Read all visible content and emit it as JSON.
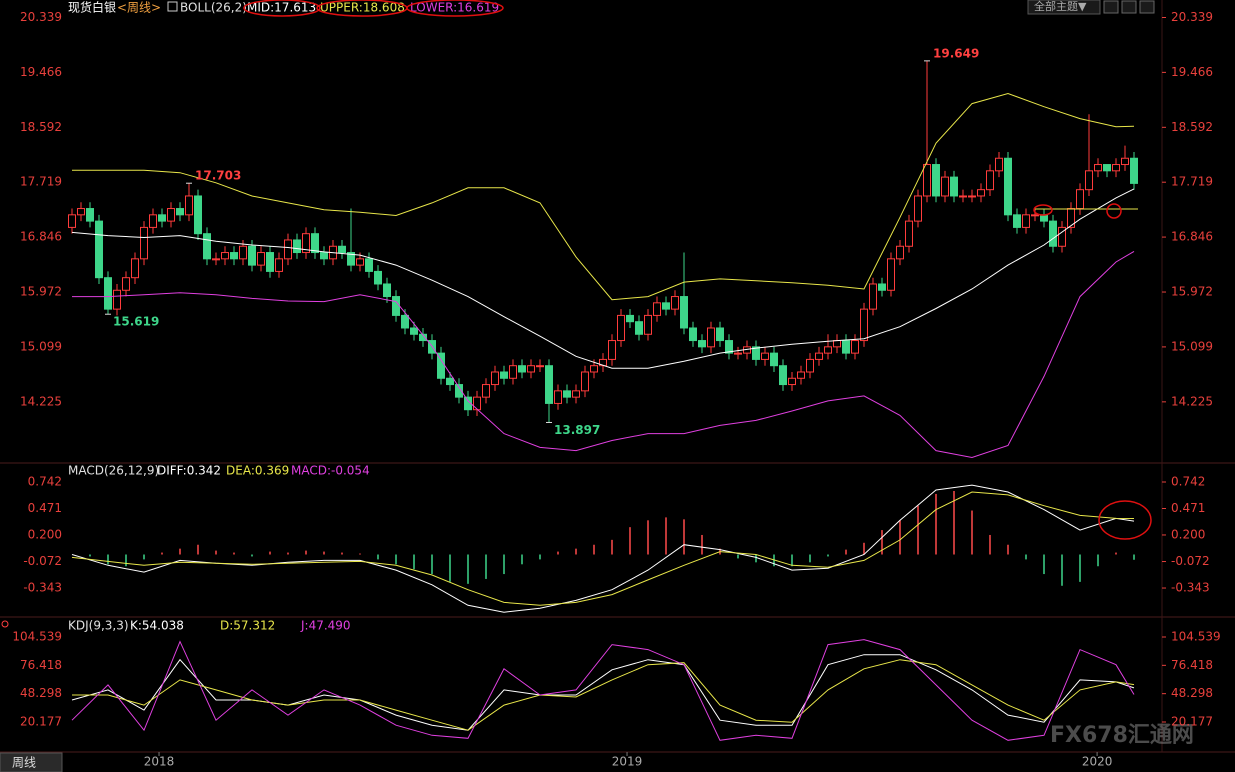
{
  "toolbar": {
    "theme_button": "全部主题▼",
    "period_tab": "周线",
    "watermark": "FX678汇通网"
  },
  "chart_data": [
    {
      "type": "candlestick",
      "title": "现货白银",
      "period": "<周线>",
      "indicator": "BOLL(26,2)",
      "up_color": "#ff3c3c",
      "down_color": "#3ed68a",
      "tick_color": "#e8403c",
      "xlim": [
        -1,
        121
      ],
      "ylim": [
        13.3,
        20.49
      ],
      "yticks": [
        20.339,
        19.466,
        18.592,
        17.719,
        16.846,
        15.972,
        15.099,
        14.225
      ],
      "open": [
        17.0,
        17.2,
        17.3,
        17.1,
        16.2,
        15.7,
        16.0,
        16.2,
        16.5,
        17.0,
        17.2,
        17.1,
        17.3,
        17.2,
        17.5,
        16.9,
        16.5,
        16.5,
        16.6,
        16.5,
        16.7,
        16.4,
        16.6,
        16.3,
        16.5,
        16.8,
        16.6,
        16.9,
        16.6,
        16.5,
        16.7,
        16.6,
        16.4,
        16.5,
        16.3,
        16.1,
        15.9,
        15.6,
        15.4,
        15.3,
        15.2,
        15.0,
        14.6,
        14.5,
        14.3,
        14.1,
        14.3,
        14.5,
        14.7,
        14.6,
        14.8,
        14.7,
        14.8,
        14.8,
        14.2,
        14.4,
        14.3,
        14.4,
        14.7,
        14.8,
        14.9,
        15.2,
        15.6,
        15.5,
        15.3,
        15.6,
        15.8,
        15.7,
        15.9,
        15.4,
        15.2,
        15.1,
        15.4,
        15.2,
        15.0,
        15.0,
        15.1,
        14.9,
        15.0,
        14.8,
        14.5,
        14.6,
        14.7,
        14.9,
        15.0,
        15.1,
        15.2,
        15.0,
        15.2,
        15.7,
        16.1,
        16.0,
        16.5,
        16.7,
        17.1,
        17.5,
        18.0,
        17.5,
        17.8,
        17.5,
        17.5,
        17.5,
        17.6,
        17.9,
        18.1,
        17.2,
        17.0,
        17.2,
        17.2,
        17.1,
        16.7,
        17.0,
        17.3,
        17.6,
        17.9,
        18.0,
        17.9,
        18.0,
        18.1
      ],
      "high": [
        17.3,
        17.4,
        17.4,
        17.2,
        16.3,
        16.1,
        16.3,
        16.6,
        17.1,
        17.3,
        17.3,
        17.4,
        17.4,
        17.703,
        17.6,
        17.0,
        16.6,
        16.7,
        16.7,
        16.8,
        16.8,
        16.7,
        16.7,
        16.6,
        16.9,
        16.9,
        17.0,
        17.0,
        16.7,
        16.8,
        16.8,
        17.3,
        16.6,
        16.6,
        16.4,
        16.2,
        16.0,
        15.7,
        15.5,
        15.4,
        15.3,
        15.1,
        14.7,
        14.6,
        14.4,
        14.4,
        14.6,
        14.8,
        14.8,
        14.9,
        14.9,
        14.9,
        14.9,
        14.9,
        14.5,
        14.5,
        14.5,
        14.8,
        14.9,
        15.0,
        15.3,
        15.7,
        15.7,
        15.6,
        15.7,
        15.9,
        15.9,
        16.0,
        16.6,
        15.5,
        15.3,
        15.5,
        15.5,
        15.3,
        15.1,
        15.2,
        15.2,
        15.1,
        15.1,
        14.9,
        14.7,
        14.8,
        15.0,
        15.1,
        15.3,
        15.3,
        15.3,
        15.3,
        15.8,
        16.2,
        16.2,
        16.6,
        16.8,
        17.2,
        17.6,
        19.649,
        18.1,
        17.9,
        17.9,
        17.6,
        17.6,
        17.7,
        18.0,
        18.2,
        18.2,
        17.3,
        17.3,
        17.3,
        17.3,
        17.2,
        17.1,
        17.4,
        17.7,
        18.8,
        18.1,
        18.0,
        18.1,
        18.3,
        18.2
      ],
      "low": [
        16.9,
        17.1,
        17.0,
        16.1,
        15.619,
        15.6,
        15.9,
        16.1,
        16.4,
        16.9,
        17.0,
        17.0,
        17.1,
        17.1,
        16.8,
        16.4,
        16.4,
        16.4,
        16.4,
        16.4,
        16.3,
        16.3,
        16.2,
        16.2,
        16.4,
        16.5,
        16.5,
        16.5,
        16.4,
        16.4,
        16.5,
        16.3,
        16.3,
        16.2,
        16.0,
        15.8,
        15.5,
        15.3,
        15.2,
        15.1,
        14.9,
        14.5,
        14.4,
        14.2,
        14.0,
        14.0,
        14.2,
        14.4,
        14.5,
        14.5,
        14.6,
        14.6,
        14.7,
        13.897,
        14.1,
        14.2,
        14.2,
        14.3,
        14.6,
        14.7,
        14.8,
        15.1,
        15.4,
        15.2,
        15.2,
        15.5,
        15.6,
        15.6,
        15.3,
        15.1,
        15.0,
        15.0,
        15.1,
        14.9,
        14.9,
        14.9,
        14.8,
        14.8,
        14.7,
        14.4,
        14.4,
        14.5,
        14.6,
        14.8,
        14.9,
        15.0,
        14.9,
        14.9,
        15.1,
        15.6,
        15.9,
        15.9,
        16.4,
        16.6,
        17.0,
        17.4,
        17.4,
        17.4,
        17.4,
        17.4,
        17.4,
        17.4,
        17.5,
        17.8,
        17.1,
        16.9,
        16.9,
        17.1,
        17.0,
        16.6,
        16.6,
        16.9,
        17.2,
        17.5,
        17.8,
        17.8,
        17.8,
        17.9,
        17.6
      ],
      "close": [
        17.2,
        17.3,
        17.1,
        16.2,
        15.7,
        16.0,
        16.2,
        16.5,
        17.0,
        17.2,
        17.1,
        17.3,
        17.2,
        17.5,
        16.9,
        16.5,
        16.5,
        16.6,
        16.5,
        16.7,
        16.4,
        16.6,
        16.3,
        16.5,
        16.8,
        16.6,
        16.9,
        16.6,
        16.5,
        16.7,
        16.6,
        16.4,
        16.5,
        16.3,
        16.1,
        15.9,
        15.6,
        15.4,
        15.3,
        15.2,
        15.0,
        14.6,
        14.5,
        14.3,
        14.1,
        14.3,
        14.5,
        14.7,
        14.6,
        14.8,
        14.7,
        14.8,
        14.8,
        14.2,
        14.4,
        14.3,
        14.4,
        14.7,
        14.8,
        14.9,
        15.2,
        15.6,
        15.5,
        15.3,
        15.6,
        15.8,
        15.7,
        15.9,
        15.4,
        15.2,
        15.1,
        15.4,
        15.2,
        15.0,
        15.0,
        15.1,
        14.9,
        15.0,
        14.8,
        14.5,
        14.6,
        14.7,
        14.9,
        15.0,
        15.1,
        15.2,
        15.0,
        15.2,
        15.7,
        16.1,
        16.0,
        16.5,
        16.7,
        17.1,
        17.5,
        18.0,
        17.5,
        17.8,
        17.5,
        17.5,
        17.5,
        17.6,
        17.9,
        18.1,
        17.2,
        17.0,
        17.2,
        17.2,
        17.1,
        16.7,
        17.0,
        17.3,
        17.6,
        17.9,
        18.0,
        17.9,
        18.0,
        18.1,
        17.7
      ],
      "extreme_labels": [
        {
          "series": "high",
          "index": 95,
          "color": "#ff4040"
        },
        {
          "series": "high",
          "index": 13,
          "color": "#ff4040"
        },
        {
          "series": "low",
          "index": 4,
          "color": "#3ed68a"
        },
        {
          "series": "low",
          "index": 53,
          "color": "#3ed68a"
        }
      ],
      "line_x": [
        0,
        4,
        8,
        12,
        16,
        20,
        24,
        28,
        32,
        36,
        40,
        44,
        48,
        52,
        56,
        60,
        64,
        68,
        72,
        76,
        80,
        84,
        88,
        92,
        96,
        100,
        104,
        108,
        112,
        116,
        118
      ],
      "series": [
        {
          "name": "MID:17.613",
          "color": "#ffffff",
          "values": [
            16.92,
            16.87,
            16.84,
            16.87,
            16.78,
            16.72,
            16.68,
            16.61,
            16.56,
            16.4,
            16.16,
            15.9,
            15.58,
            15.27,
            14.95,
            14.76,
            14.76,
            14.87,
            15.0,
            15.08,
            15.14,
            15.19,
            15.23,
            15.42,
            15.71,
            16.02,
            16.4,
            16.72,
            17.13,
            17.47,
            17.613
          ]
        },
        {
          "name": "UPPER:18.608",
          "color": "#e8e64a",
          "values": [
            17.91,
            17.91,
            17.91,
            17.87,
            17.71,
            17.5,
            17.39,
            17.28,
            17.24,
            17.19,
            17.39,
            17.63,
            17.63,
            17.39,
            16.53,
            15.85,
            15.9,
            16.13,
            16.18,
            16.15,
            16.12,
            16.08,
            16.02,
            17.16,
            18.34,
            18.97,
            19.13,
            18.92,
            18.73,
            18.6,
            18.608
          ]
        },
        {
          "name": "LOWER:16.619",
          "color": "#e040e0",
          "values": [
            15.9,
            15.9,
            15.93,
            15.96,
            15.93,
            15.87,
            15.83,
            15.82,
            15.93,
            15.82,
            15.11,
            14.24,
            13.72,
            13.5,
            13.45,
            13.61,
            13.72,
            13.72,
            13.85,
            13.93,
            14.08,
            14.24,
            14.32,
            14.01,
            13.45,
            13.34,
            13.53,
            14.63,
            15.9,
            16.45,
            16.619
          ]
        }
      ]
    },
    {
      "type": "macd",
      "indicator": "MACD(26,12,9)",
      "up_color": "#ff4a4a",
      "down_color": "#3ed68a",
      "tick_color": "#e8403c",
      "xlim": [
        -1,
        121
      ],
      "ylim": [
        -0.619,
        0.916
      ],
      "yticks": [
        0.742,
        0.471,
        {
          "value": 0.2,
          "label": "0.200"
        },
        -0.072,
        -0.343
      ],
      "line_x": [
        0,
        4,
        8,
        12,
        16,
        20,
        24,
        28,
        32,
        36,
        40,
        44,
        48,
        52,
        56,
        60,
        64,
        68,
        72,
        76,
        80,
        84,
        88,
        92,
        96,
        100,
        104,
        108,
        112,
        116,
        118
      ],
      "bar_x": [
        0,
        2,
        4,
        6,
        8,
        10,
        12,
        14,
        16,
        18,
        20,
        22,
        24,
        26,
        28,
        30,
        32,
        34,
        36,
        38,
        40,
        42,
        44,
        46,
        48,
        50,
        52,
        54,
        56,
        58,
        60,
        62,
        64,
        66,
        68,
        70,
        72,
        74,
        76,
        78,
        80,
        82,
        84,
        86,
        88,
        90,
        92,
        94,
        96,
        98,
        100,
        102,
        104,
        106,
        108,
        110,
        112,
        114,
        116,
        118
      ],
      "series": [
        {
          "name": "DIFF:0.342",
          "color": "#ffffff",
          "values": [
            0.0,
            -0.11,
            -0.18,
            -0.06,
            -0.09,
            -0.11,
            -0.08,
            -0.06,
            -0.06,
            -0.16,
            -0.31,
            -0.52,
            -0.59,
            -0.55,
            -0.47,
            -0.36,
            -0.16,
            0.1,
            0.05,
            -0.03,
            -0.16,
            -0.14,
            0.0,
            0.35,
            0.66,
            0.71,
            0.64,
            0.46,
            0.25,
            0.37,
            0.342
          ]
        },
        {
          "name": "DEA:0.369",
          "color": "#e8e64a",
          "values": [
            -0.03,
            -0.07,
            -0.11,
            -0.08,
            -0.09,
            -0.1,
            -0.09,
            -0.08,
            -0.07,
            -0.11,
            -0.21,
            -0.36,
            -0.49,
            -0.52,
            -0.49,
            -0.41,
            -0.26,
            -0.11,
            0.03,
            0.0,
            -0.11,
            -0.13,
            -0.06,
            0.15,
            0.46,
            0.64,
            0.61,
            0.5,
            0.4,
            0.37,
            0.369
          ]
        },
        {
          "name": "MACD:-0.054",
          "color": "#e040e0",
          "style": "bar",
          "values": [
            0.0,
            -0.02,
            -0.1,
            -0.12,
            -0.05,
            0.02,
            0.06,
            0.1,
            0.04,
            0.02,
            -0.02,
            0.03,
            0.02,
            0.04,
            0.03,
            0.02,
            0.01,
            -0.05,
            -0.1,
            -0.15,
            -0.2,
            -0.28,
            -0.3,
            -0.25,
            -0.2,
            -0.1,
            -0.05,
            0.03,
            0.06,
            0.1,
            0.15,
            0.28,
            0.35,
            0.38,
            0.36,
            0.2,
            0.06,
            -0.04,
            -0.08,
            -0.12,
            -0.12,
            -0.08,
            -0.02,
            0.05,
            0.12,
            0.25,
            0.35,
            0.5,
            0.62,
            0.65,
            0.45,
            0.2,
            0.1,
            -0.05,
            -0.2,
            -0.32,
            -0.28,
            -0.12,
            0.02,
            -0.054
          ]
        }
      ]
    },
    {
      "type": "line",
      "indicator": "KDJ(9,3,3)",
      "tick_color": "#e8403c",
      "xlim": [
        -1,
        121
      ],
      "ylim": [
        -7.6,
        121.4
      ],
      "yticks": [
        104.539,
        76.418,
        48.298,
        20.177
      ],
      "xticks": [
        {
          "value": 9.67,
          "label": "2018"
        },
        {
          "value": 61.67,
          "label": "2019"
        },
        {
          "value": 113.9,
          "label": "2020"
        }
      ],
      "line_x": [
        0,
        4,
        8,
        12,
        16,
        20,
        24,
        28,
        32,
        36,
        40,
        44,
        48,
        52,
        56,
        60,
        64,
        68,
        72,
        76,
        80,
        84,
        88,
        92,
        96,
        100,
        104,
        108,
        112,
        116,
        118
      ],
      "series": [
        {
          "name": "K:54.038",
          "color": "#ffffff",
          "values": [
            42,
            52,
            32,
            82,
            42,
            42,
            37,
            47,
            42,
            27,
            17,
            12,
            52,
            47,
            47,
            72,
            82,
            77,
            22,
            17,
            17,
            77,
            87,
            87,
            72,
            52,
            27,
            20,
            62,
            60,
            54.038
          ]
        },
        {
          "name": "D:57.312",
          "color": "#e8e64a",
          "values": [
            47,
            47,
            37,
            62,
            52,
            42,
            37,
            42,
            42,
            32,
            22,
            12,
            37,
            47,
            45,
            62,
            77,
            79,
            37,
            22,
            20,
            52,
            73,
            82,
            77,
            57,
            37,
            22,
            52,
            60,
            57.312
          ]
        },
        {
          "name": "J:47.490",
          "color": "#e040e0",
          "values": [
            22,
            57,
            12,
            100,
            22,
            52,
            27,
            52,
            37,
            17,
            7,
            4,
            73,
            47,
            52,
            97,
            92,
            77,
            2,
            7,
            4,
            97,
            102,
            92,
            57,
            22,
            2,
            7,
            92,
            77,
            47.49
          ]
        }
      ]
    }
  ]
}
